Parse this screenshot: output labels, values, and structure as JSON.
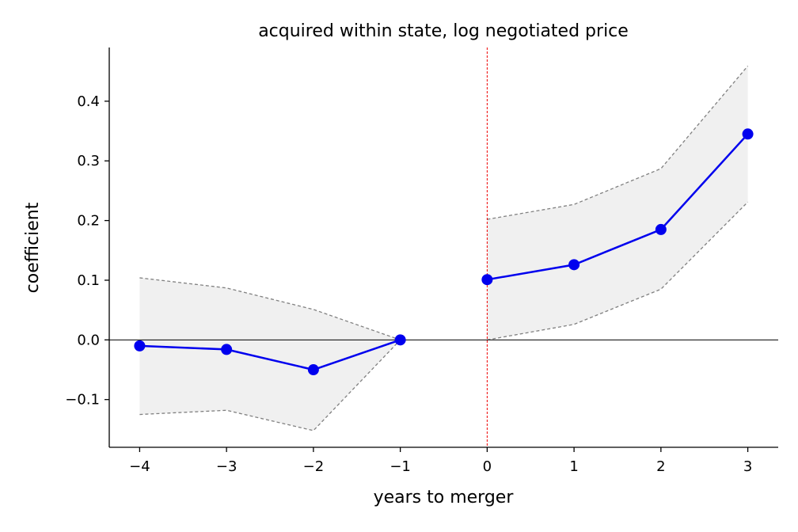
{
  "chart_data": {
    "type": "line",
    "title": "acquired within state, log negotiated price",
    "xlabel": "years to merger",
    "ylabel": "coefficient",
    "xlim": [
      -4.35,
      3.35
    ],
    "ylim": [
      -0.18,
      0.49
    ],
    "xticks": [
      -4,
      -3,
      -2,
      -1,
      0,
      1,
      2,
      3
    ],
    "xtick_labels": [
      "−4",
      "−3",
      "−2",
      "−1",
      "0",
      "1",
      "2",
      "3"
    ],
    "yticks": [
      -0.1,
      0.0,
      0.1,
      0.2,
      0.3,
      0.4
    ],
    "ytick_labels": [
      "−0.1",
      "0.0",
      "0.1",
      "0.2",
      "0.3",
      "0.4"
    ],
    "grid": false,
    "reference_lines": {
      "horizontal_y": 0.0,
      "vertical_x": 0
    },
    "colors": {
      "series": "#0000ee",
      "ci_fill": "#f0f0f0",
      "ci_line": "#808080",
      "vline": "#ee0000",
      "hline": "#000000"
    },
    "series": [
      {
        "segment": "pre",
        "x": [
          -4,
          -3,
          -2,
          -1
        ],
        "y": [
          -0.01,
          -0.016,
          -0.05,
          0.0
        ],
        "ci_upper": [
          0.104,
          0.087,
          0.051,
          0.0
        ],
        "ci_lower": [
          -0.125,
          -0.118,
          -0.152,
          0.0
        ]
      },
      {
        "segment": "post",
        "x": [
          0,
          1,
          2,
          3
        ],
        "y": [
          0.101,
          0.126,
          0.185,
          0.345
        ],
        "ci_upper": [
          0.202,
          0.227,
          0.287,
          0.459
        ],
        "ci_lower": [
          0.0,
          0.026,
          0.085,
          0.231
        ]
      }
    ]
  }
}
